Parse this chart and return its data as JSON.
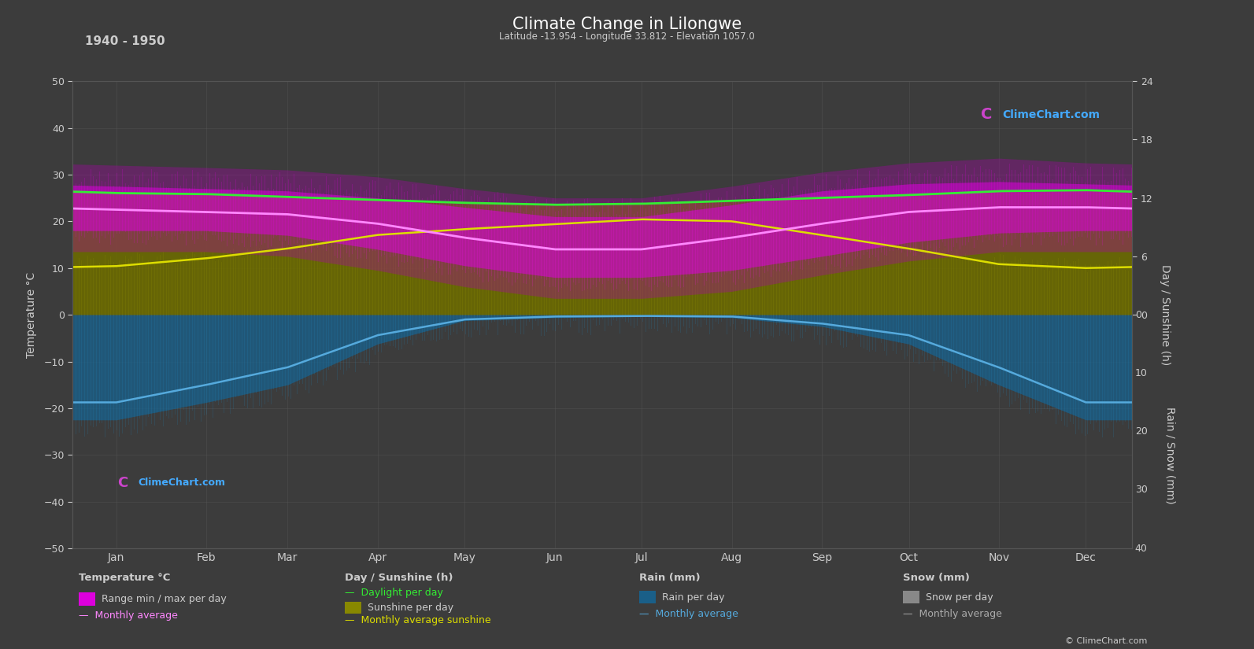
{
  "title": "Climate Change in Lilongwe",
  "subtitle": "Latitude -13.954 - Longitude 33.812 - Elevation 1057.0",
  "period": "1940 - 1950",
  "bg_color": "#3c3c3c",
  "text_color": "#cccccc",
  "grid_color": "#555555",
  "months": [
    "Jan",
    "Feb",
    "Mar",
    "Apr",
    "May",
    "Jun",
    "Jul",
    "Aug",
    "Sep",
    "Oct",
    "Nov",
    "Dec"
  ],
  "month_centers": [
    15,
    46,
    74,
    105,
    135,
    166,
    196,
    227,
    258,
    288,
    319,
    349
  ],
  "temp_max_avg": [
    27.5,
    27.0,
    26.5,
    25.0,
    23.0,
    21.0,
    21.0,
    23.5,
    26.5,
    28.0,
    28.5,
    28.0
  ],
  "temp_min_avg": [
    18.0,
    18.0,
    17.0,
    14.0,
    10.5,
    8.0,
    8.0,
    9.5,
    12.5,
    15.5,
    17.5,
    18.0
  ],
  "temp_max_extreme": [
    32.0,
    31.5,
    31.0,
    29.5,
    27.0,
    25.0,
    25.0,
    27.5,
    30.5,
    32.5,
    33.5,
    32.5
  ],
  "temp_min_extreme": [
    13.5,
    13.5,
    12.5,
    9.5,
    6.0,
    3.5,
    3.5,
    5.0,
    8.5,
    11.5,
    13.5,
    13.5
  ],
  "temp_monthly_avg": [
    22.5,
    22.0,
    21.5,
    19.5,
    16.5,
    14.0,
    14.0,
    16.5,
    19.5,
    22.0,
    23.0,
    23.0
  ],
  "daylight_h": [
    12.5,
    12.4,
    12.1,
    11.8,
    11.5,
    11.3,
    11.4,
    11.7,
    12.0,
    12.3,
    12.7,
    12.8
  ],
  "sunshine_h": [
    5.5,
    6.0,
    7.0,
    8.5,
    9.0,
    9.5,
    10.0,
    10.0,
    8.5,
    7.0,
    5.5,
    5.0
  ],
  "sunshine_avg_h": [
    5.0,
    5.8,
    6.8,
    8.2,
    8.8,
    9.3,
    9.8,
    9.6,
    8.2,
    6.8,
    5.2,
    4.8
  ],
  "rain_daily_mm": [
    18.0,
    15.0,
    12.0,
    5.0,
    1.0,
    0.5,
    0.3,
    0.5,
    2.0,
    5.0,
    12.0,
    18.0
  ],
  "rain_avg_mm": [
    15.0,
    12.0,
    9.0,
    3.5,
    0.8,
    0.3,
    0.2,
    0.3,
    1.5,
    3.5,
    9.0,
    15.0
  ],
  "ylim": [
    -50,
    50
  ],
  "sun_scale": 2.0833,
  "rain_scale": 1.25,
  "brand_name": "ClimeChart.com",
  "logo_circle_color": "#cc44cc",
  "logo_text_color": "#44aaff"
}
